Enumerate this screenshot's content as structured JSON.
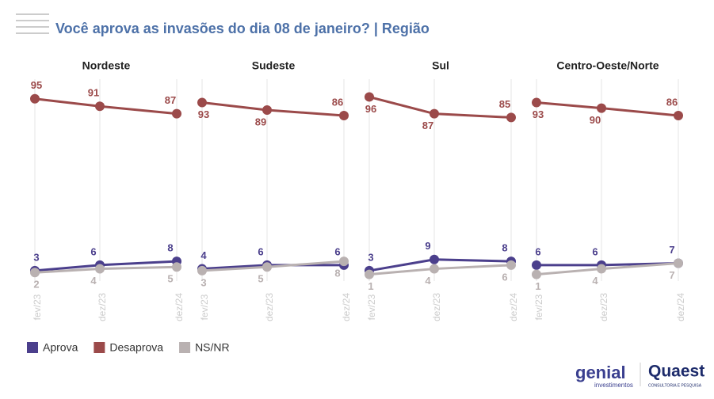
{
  "title": "Você aprova as invasões do dia 08 de janeiro? | Região",
  "chart_data": [
    {
      "type": "line",
      "title": "Nordeste",
      "x": [
        "fev/23",
        "dez/23",
        "dez/24"
      ],
      "ylim": [
        0,
        100
      ],
      "series": [
        {
          "name": "Aprova",
          "color": "#4b3f8c",
          "values": [
            3,
            6,
            8
          ]
        },
        {
          "name": "Desaprova",
          "color": "#9b4a4a",
          "values": [
            95,
            91,
            87
          ]
        },
        {
          "name": "NS/NR",
          "color": "#b9b1b1",
          "values": [
            2,
            4,
            5
          ]
        }
      ]
    },
    {
      "type": "line",
      "title": "Sudeste",
      "x": [
        "fev/23",
        "dez/23",
        "dez/24"
      ],
      "ylim": [
        0,
        100
      ],
      "series": [
        {
          "name": "Aprova",
          "color": "#4b3f8c",
          "values": [
            4,
            6,
            6
          ]
        },
        {
          "name": "Desaprova",
          "color": "#9b4a4a",
          "values": [
            93,
            89,
            86
          ]
        },
        {
          "name": "NS/NR",
          "color": "#b9b1b1",
          "values": [
            3,
            5,
            8
          ]
        }
      ]
    },
    {
      "type": "line",
      "title": "Sul",
      "x": [
        "fev/23",
        "dez/23",
        "dez/24"
      ],
      "ylim": [
        0,
        100
      ],
      "series": [
        {
          "name": "Aprova",
          "color": "#4b3f8c",
          "values": [
            3,
            9,
            8
          ]
        },
        {
          "name": "Desaprova",
          "color": "#9b4a4a",
          "values": [
            96,
            87,
            85
          ]
        },
        {
          "name": "NS/NR",
          "color": "#b9b1b1",
          "values": [
            1,
            4,
            6
          ]
        }
      ]
    },
    {
      "type": "line",
      "title": "Centro-Oeste/Norte",
      "x": [
        "fev/23",
        "dez/23",
        "dez/24"
      ],
      "ylim": [
        0,
        100
      ],
      "series": [
        {
          "name": "Aprova",
          "color": "#4b3f8c",
          "values": [
            6,
            6,
            7
          ]
        },
        {
          "name": "Desaprova",
          "color": "#9b4a4a",
          "values": [
            93,
            90,
            86
          ]
        },
        {
          "name": "NS/NR",
          "color": "#b9b1b1",
          "values": [
            1,
            4,
            7
          ]
        }
      ]
    }
  ],
  "logos": {
    "genial": "genial",
    "genial_sub": "investimentos",
    "quaest": "Quaest",
    "quaest_sub": "CONSULTORIA E PESQUISA"
  }
}
